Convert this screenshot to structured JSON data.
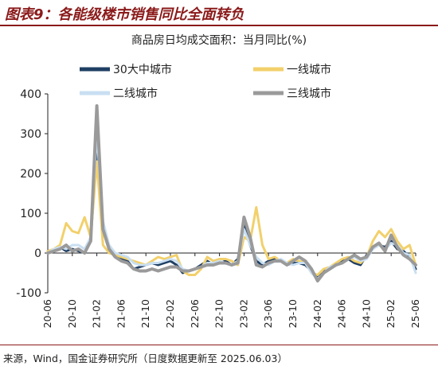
{
  "header": {
    "title": "图表9：各能级楼市销售同比全面转负"
  },
  "source": "来源，Wind，国金证券研究所（日度数据更新至 2025.06.03）",
  "chart_data": {
    "type": "line",
    "title": "商品房日均成交面积：当月同比(%)",
    "xlabel": "",
    "ylabel": "",
    "ylim": [
      -100,
      400
    ],
    "yticks": [
      -100,
      0,
      100,
      200,
      300,
      400
    ],
    "x_tick_labels": [
      "20-06",
      "20-10",
      "21-02",
      "21-06",
      "21-10",
      "22-02",
      "22-06",
      "22-10",
      "23-02",
      "23-06",
      "23-10",
      "24-02",
      "24-06",
      "24-10",
      "25-02",
      "25-06"
    ],
    "x": [
      "20-06",
      "20-07",
      "20-08",
      "20-09",
      "20-10",
      "20-11",
      "20-12",
      "21-01",
      "21-02",
      "21-03",
      "21-04",
      "21-05",
      "21-06",
      "21-07",
      "21-08",
      "21-09",
      "21-10",
      "21-11",
      "21-12",
      "22-01",
      "22-02",
      "22-03",
      "22-04",
      "22-05",
      "22-06",
      "22-07",
      "22-08",
      "22-09",
      "22-10",
      "22-11",
      "22-12",
      "23-01",
      "23-02",
      "23-03",
      "23-04",
      "23-05",
      "23-06",
      "23-07",
      "23-08",
      "23-09",
      "23-10",
      "23-11",
      "23-12",
      "24-01",
      "24-02",
      "24-03",
      "24-04",
      "24-05",
      "24-06",
      "24-07",
      "24-08",
      "24-09",
      "24-10",
      "24-11",
      "24-12",
      "25-01",
      "25-02",
      "25-03",
      "25-04",
      "25-05",
      "25-06"
    ],
    "grid": false,
    "legend_position": "top",
    "series": [
      {
        "name": "30大中城市",
        "color": "#1f3f63",
        "width": 3,
        "values": [
          5,
          8,
          15,
          5,
          10,
          5,
          0,
          40,
          250,
          70,
          10,
          -10,
          -15,
          -20,
          -40,
          -35,
          -30,
          -25,
          -30,
          -25,
          -20,
          -30,
          -50,
          -45,
          -40,
          -30,
          -20,
          -30,
          -25,
          -20,
          -30,
          -15,
          70,
          20,
          -20,
          -30,
          -20,
          -15,
          -20,
          -30,
          -25,
          -25,
          -30,
          -45,
          -60,
          -45,
          -40,
          -30,
          -20,
          -15,
          -25,
          -30,
          -5,
          15,
          20,
          15,
          30,
          10,
          5,
          -10,
          -40
        ]
      },
      {
        "name": "一线城市",
        "color": "#f2d06b",
        "width": 3,
        "values": [
          5,
          10,
          20,
          75,
          55,
          50,
          90,
          40,
          230,
          20,
          0,
          -5,
          -10,
          -15,
          -20,
          -25,
          -30,
          -20,
          -10,
          -15,
          -10,
          -5,
          -45,
          -55,
          -55,
          -40,
          -10,
          -20,
          -15,
          -15,
          -20,
          -30,
          40,
          30,
          115,
          20,
          -15,
          -10,
          -20,
          -25,
          -15,
          -20,
          -25,
          -50,
          -55,
          -40,
          -35,
          -25,
          -15,
          -10,
          -20,
          -25,
          -10,
          30,
          55,
          40,
          60,
          30,
          10,
          20,
          -30
        ]
      },
      {
        "name": "二线城市",
        "color": "#c9dff2",
        "width": 3,
        "values": [
          0,
          10,
          15,
          10,
          20,
          20,
          10,
          40,
          300,
          80,
          20,
          0,
          -5,
          -10,
          -25,
          -30,
          -30,
          -25,
          -25,
          -20,
          -15,
          -20,
          -40,
          -45,
          -40,
          -35,
          -25,
          -25,
          -20,
          -25,
          -30,
          -20,
          60,
          20,
          -10,
          -25,
          -30,
          -20,
          -15,
          -25,
          -30,
          -25,
          -25,
          -50,
          -65,
          -50,
          -35,
          -30,
          -25,
          -15,
          -10,
          -20,
          -15,
          10,
          20,
          10,
          25,
          20,
          0,
          -5,
          -50
        ]
      },
      {
        "name": "三线城市",
        "color": "#9a9a9a",
        "width": 4,
        "values": [
          0,
          5,
          10,
          20,
          5,
          10,
          0,
          30,
          370,
          60,
          10,
          -10,
          -20,
          -25,
          -40,
          -45,
          -45,
          -40,
          -45,
          -40,
          -35,
          -35,
          -45,
          -45,
          -40,
          -35,
          -30,
          -30,
          -25,
          -25,
          -30,
          -25,
          90,
          40,
          -30,
          -35,
          -25,
          -20,
          -20,
          -30,
          -20,
          -10,
          -20,
          -40,
          -70,
          -50,
          -40,
          -30,
          -25,
          -15,
          -5,
          -15,
          -10,
          15,
          25,
          5,
          45,
          15,
          -5,
          -15,
          -30
        ]
      }
    ]
  }
}
